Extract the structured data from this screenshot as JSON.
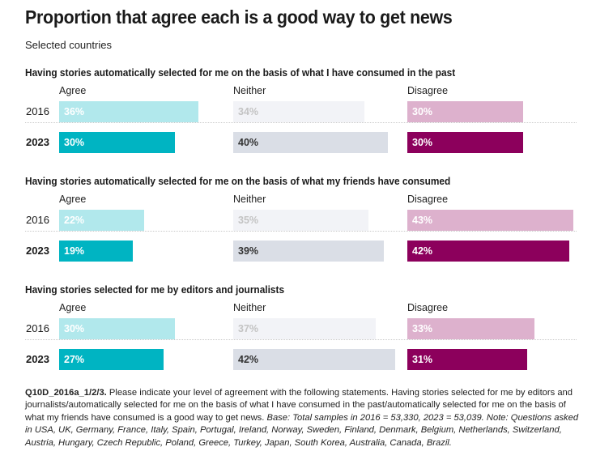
{
  "title": "Proportion that agree each is a good way to get news",
  "subtitle": "Selected countries",
  "footnote": {
    "code": "Q10D_2016a_1/2/3.",
    "text": " Please indicate your level of agreement with the following statements. Having stories selected for me by editors and journalists/automatically selected for me on the basis of what I have consumed in the past/automatically selected for me on the basis of what my friends have consumed is a good way to get news. ",
    "italic": "Base: Total samples in 2016 = 53,330, 2023 = 53,039. Note: Questions asked in USA, UK, Germany, France, Italy, Spain, Portugal, Ireland, Norway, Sweden, Finland, Denmark, Belgium, Netherlands, Switzerland, Austria, Hungary, Czech Republic, Poland, Greece, Turkey, Japan, South Korea, Australia, Canada, Brazil."
  },
  "colors": {
    "agree_2016": "#b1e8ec",
    "agree_2023": "#00b4c2",
    "neither_2016": "#f2f3f7",
    "neither_2023": "#dadee6",
    "disagree_2016": "#ddb1cd",
    "disagree_2023": "#8c005c",
    "label_light": "#ffffff",
    "label_neither_2016": "#c3c3c3",
    "label_neither_2023": "#333333"
  },
  "chart_data": {
    "type": "bar",
    "title": "Proportion that agree each is a good way to get news",
    "subtitle": "Selected countries",
    "categories": [
      "Agree",
      "Neither",
      "Disagree"
    ],
    "years": [
      "2016",
      "2023"
    ],
    "unit": "%",
    "xlim": [
      0,
      100
    ],
    "grid": false,
    "legend": "none",
    "panels": [
      {
        "question": "Having stories automatically selected for me on the basis of what I have consumed in the past",
        "series": [
          {
            "name": "2016",
            "values": [
              36,
              34,
              30
            ],
            "labels": [
              "36%",
              "34%",
              "30%"
            ]
          },
          {
            "name": "2023",
            "values": [
              30,
              40,
              30
            ],
            "labels": [
              "30%",
              "40%",
              "30%"
            ]
          }
        ]
      },
      {
        "question": "Having stories automatically selected for me on the basis of what my friends have consumed",
        "series": [
          {
            "name": "2016",
            "values": [
              22,
              35,
              43
            ],
            "labels": [
              "22%",
              "35%",
              "43%"
            ]
          },
          {
            "name": "2023",
            "values": [
              19,
              39,
              42
            ],
            "labels": [
              "19%",
              "39%",
              "42%"
            ]
          }
        ]
      },
      {
        "question": "Having stories selected for me by editors and journalists",
        "series": [
          {
            "name": "2016",
            "values": [
              30,
              37,
              33
            ],
            "labels": [
              "30%",
              "37%",
              "33%"
            ]
          },
          {
            "name": "2023",
            "values": [
              27,
              42,
              31
            ],
            "labels": [
              "27%",
              "42%",
              "31%"
            ]
          }
        ]
      }
    ]
  }
}
